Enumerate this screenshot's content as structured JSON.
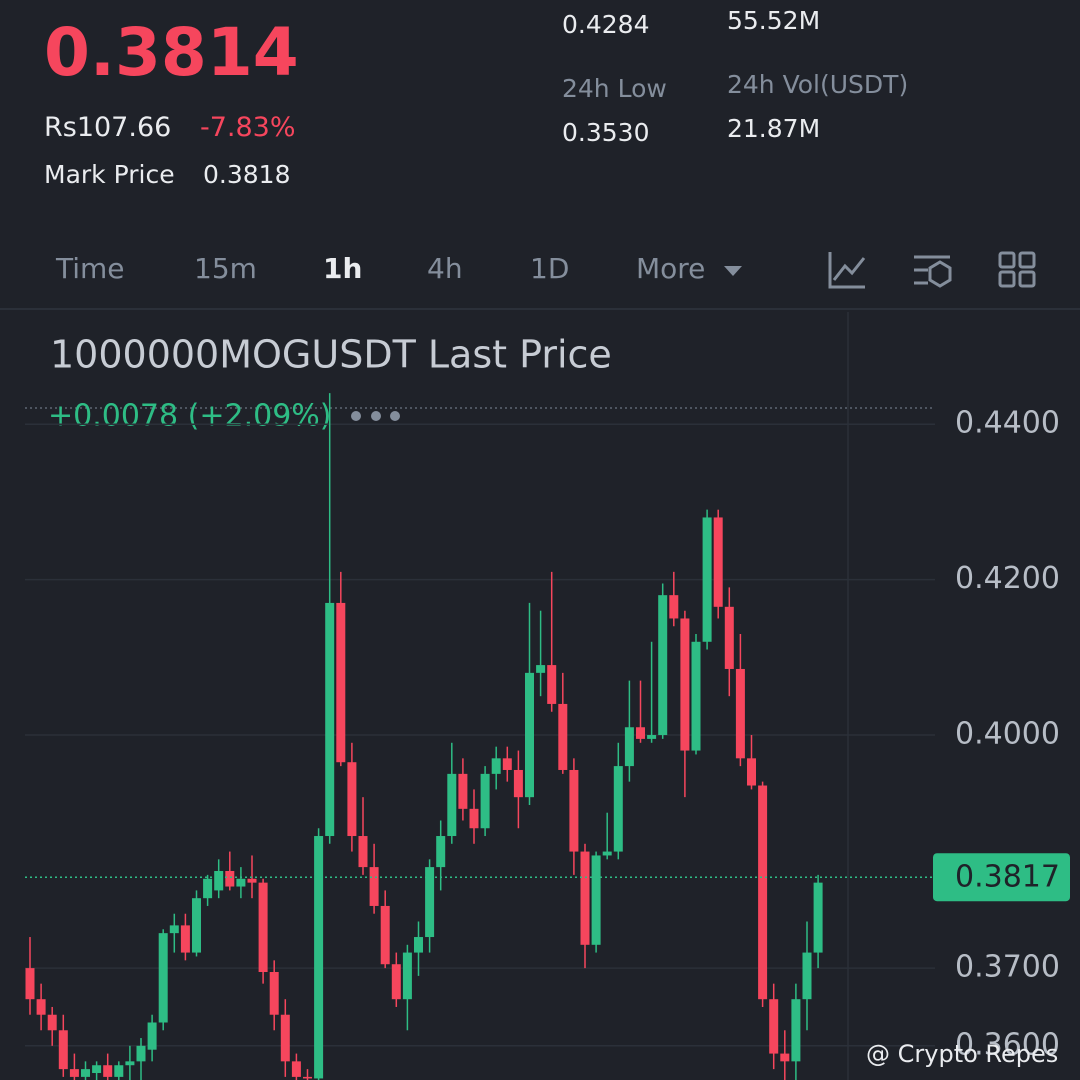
{
  "header": {
    "price": "0.3814",
    "local_price": "Rs107.66",
    "change": "-7.83%",
    "mark_label": "Mark Price",
    "mark_value": "0.3818",
    "stats": {
      "high_value": "0.4284",
      "turnover_value": "55.52M",
      "low_label": "24h Low",
      "low_value": "0.3530",
      "vol_label": "24h Vol(USDT)",
      "vol_value": "21.87M"
    }
  },
  "tabs": [
    "Time",
    "15m",
    "1h",
    "4h",
    "1D",
    "More"
  ],
  "watermark": "@ Crypto Repes",
  "chart_data": {
    "type": "candlestick",
    "title": "1000000MOGUSDT Last Price",
    "subtitle": "+0.0078 (+2.09%)",
    "up_color": "#2ebd85",
    "down_color": "#f6465d",
    "grid": true,
    "ylim": [
      0.3556,
      0.4547
    ],
    "yticks": [
      {
        "value": 0.44,
        "label": "0.4400"
      },
      {
        "value": 0.42,
        "label": "0.4200"
      },
      {
        "value": 0.4,
        "label": "0.4000"
      },
      {
        "value": 0.37,
        "label": "0.3700"
      },
      {
        "value": 0.36,
        "label": "0.3600"
      }
    ],
    "last_price": 0.3817,
    "open": [
      0.37,
      0.366,
      0.364,
      0.362,
      0.357,
      0.356,
      0.3565,
      0.3575,
      0.356,
      0.3575,
      0.358,
      0.3595,
      0.363,
      0.3745,
      0.3755,
      0.372,
      0.379,
      0.38,
      0.3825,
      0.3805,
      0.3815,
      0.381,
      0.3695,
      0.364,
      0.358,
      0.356,
      0.3558,
      0.387,
      0.417,
      0.3965,
      0.387,
      0.383,
      0.378,
      0.3705,
      0.366,
      0.372,
      0.374,
      0.383,
      0.387,
      0.395,
      0.3905,
      0.388,
      0.395,
      0.397,
      0.3955,
      0.392,
      0.408,
      0.409,
      0.404,
      0.3955,
      0.385,
      0.373,
      0.3845,
      0.385,
      0.396,
      0.401,
      0.3995,
      0.4,
      0.418,
      0.415,
      0.398,
      0.412,
      0.428,
      0.4165,
      0.4085,
      0.397,
      0.3935,
      0.366,
      0.359,
      0.358,
      0.366,
      0.372
    ],
    "high": [
      0.374,
      0.368,
      0.365,
      0.364,
      0.359,
      0.358,
      0.358,
      0.359,
      0.358,
      0.36,
      0.361,
      0.364,
      0.375,
      0.377,
      0.377,
      0.38,
      0.382,
      0.384,
      0.385,
      0.383,
      0.3845,
      0.3815,
      0.371,
      0.366,
      0.359,
      0.357,
      0.388,
      0.444,
      0.421,
      0.399,
      0.392,
      0.386,
      0.38,
      0.372,
      0.373,
      0.376,
      0.384,
      0.389,
      0.399,
      0.397,
      0.393,
      0.396,
      0.3985,
      0.3985,
      0.398,
      0.417,
      0.416,
      0.421,
      0.408,
      0.397,
      0.386,
      0.385,
      0.39,
      0.399,
      0.407,
      0.407,
      0.412,
      0.4195,
      0.421,
      0.416,
      0.413,
      0.429,
      0.429,
      0.419,
      0.413,
      0.4,
      0.394,
      0.368,
      0.362,
      0.368,
      0.376,
      0.382
    ],
    "low": [
      0.364,
      0.362,
      0.36,
      0.356,
      0.3556,
      0.3556,
      0.3556,
      0.3556,
      0.3556,
      0.3556,
      0.3556,
      0.358,
      0.362,
      0.372,
      0.371,
      0.3715,
      0.378,
      0.379,
      0.38,
      0.379,
      0.379,
      0.368,
      0.362,
      0.356,
      0.3556,
      0.3556,
      0.3556,
      0.386,
      0.396,
      0.385,
      0.382,
      0.377,
      0.37,
      0.365,
      0.362,
      0.369,
      0.372,
      0.38,
      0.386,
      0.389,
      0.386,
      0.387,
      0.393,
      0.394,
      0.388,
      0.391,
      0.405,
      0.403,
      0.395,
      0.382,
      0.37,
      0.372,
      0.384,
      0.384,
      0.394,
      0.399,
      0.399,
      0.3995,
      0.414,
      0.392,
      0.3975,
      0.411,
      0.415,
      0.405,
      0.396,
      0.393,
      0.365,
      0.357,
      0.3556,
      0.3556,
      0.362,
      0.37
    ],
    "close": [
      0.366,
      0.364,
      0.362,
      0.357,
      0.356,
      0.357,
      0.3575,
      0.356,
      0.3575,
      0.358,
      0.36,
      0.363,
      0.3745,
      0.3755,
      0.372,
      0.379,
      0.3815,
      0.3825,
      0.3805,
      0.3815,
      0.381,
      0.3695,
      0.364,
      0.358,
      0.356,
      0.3558,
      0.387,
      0.417,
      0.3965,
      0.387,
      0.383,
      0.378,
      0.3705,
      0.366,
      0.372,
      0.374,
      0.383,
      0.387,
      0.395,
      0.3905,
      0.388,
      0.395,
      0.397,
      0.3955,
      0.392,
      0.408,
      0.409,
      0.404,
      0.3955,
      0.385,
      0.373,
      0.3845,
      0.385,
      0.396,
      0.401,
      0.3995,
      0.4,
      0.418,
      0.415,
      0.398,
      0.412,
      0.428,
      0.4165,
      0.4085,
      0.397,
      0.3935,
      0.366,
      0.359,
      0.358,
      0.366,
      0.372,
      0.381
    ]
  }
}
